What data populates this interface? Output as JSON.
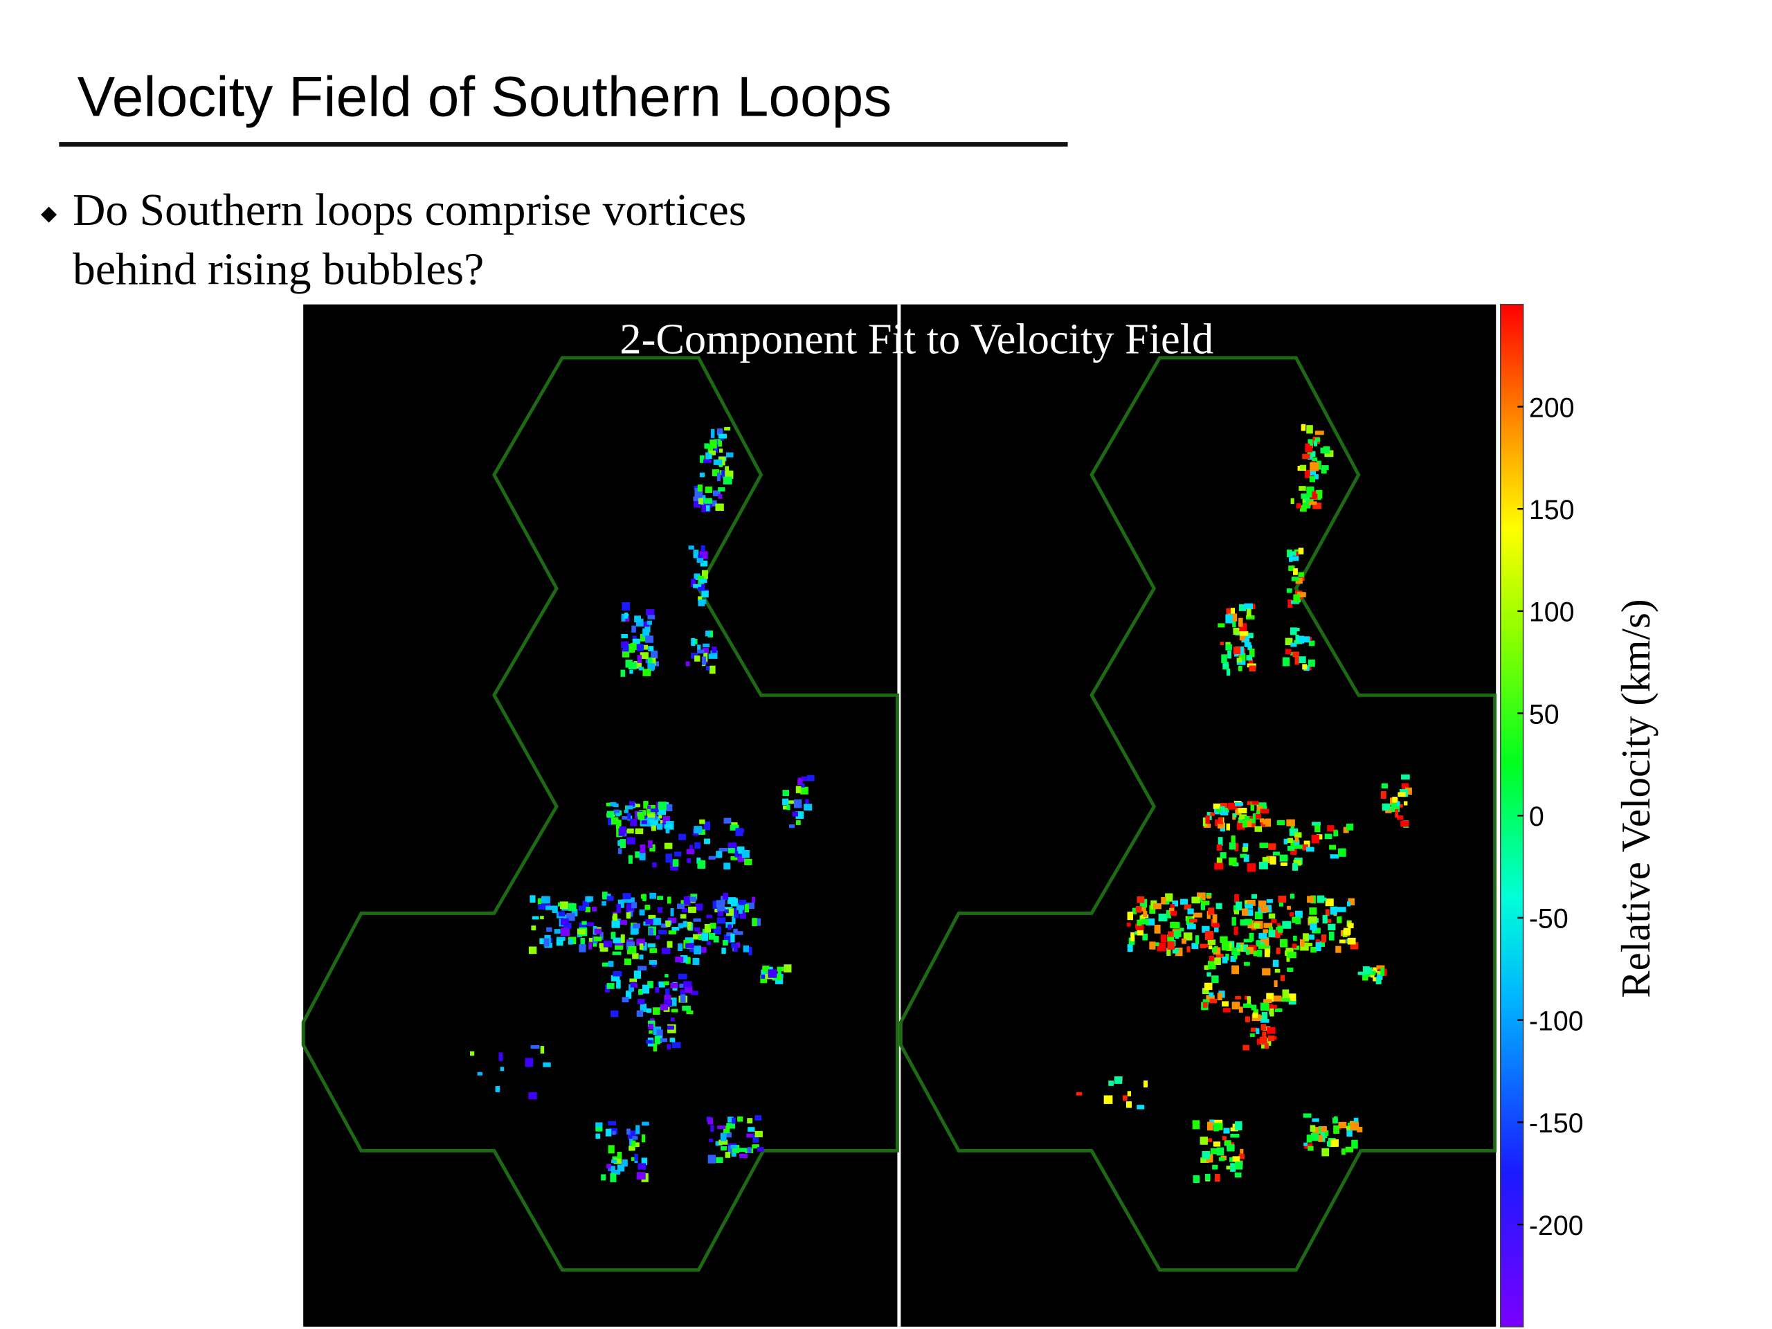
{
  "slide": {
    "title": "Velocity Field of Southern Loops",
    "bullet": {
      "lines": [
        "Do Southern loops comprise vortices",
        "behind rising bubbles?"
      ]
    }
  },
  "figure": {
    "title": "2-Component Fit to Velocity Field",
    "colorbar": {
      "label": "Relative Velocity (km/s)",
      "lim": [
        -250,
        250
      ],
      "ticks": [
        200,
        150,
        100,
        50,
        0,
        -50,
        -100,
        -150,
        -200
      ]
    }
  }
}
